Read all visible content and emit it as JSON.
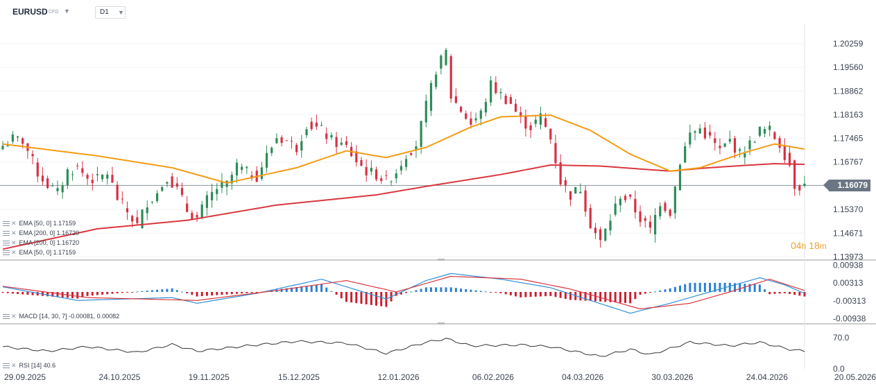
{
  "header": {
    "symbol": "EURUSD",
    "symbol_tag": "CFD",
    "timeframe": "D1"
  },
  "countdown": {
    "hours": "04",
    "h": "h",
    "minutes": "18",
    "m": "m"
  },
  "indicators": {
    "main": [
      "EMA [50, 0] 1.17159",
      "EMA [200, 0] 1.16720",
      "EMA [200, 0] 1.16720",
      "EMA [50, 0] 1.17159"
    ],
    "macd": "MACD [14, 30, 7] -0.00081, 0.00082",
    "rsi": "RSI [14] 40.6"
  },
  "colors": {
    "up": "#2e8b57",
    "down": "#d63042",
    "ema50": "#f39c12",
    "ema200": "#d9363e",
    "macd_line": "#2f8fd8",
    "signal_line": "#d9363e",
    "hist_pos": "#2a7fd4",
    "hist_neg": "#cc1f2f",
    "rsi_line": "#333333"
  },
  "chart_data": {
    "type": "candlestick",
    "price_axis": {
      "ylim": [
        1.139,
        1.2085
      ],
      "ticks": [
        "1.20259",
        "1.19560",
        "1.18862",
        "1.18163",
        "1.17465",
        "1.16767",
        "1.15370",
        "1.14671",
        "1.13973"
      ]
    },
    "last_price": "1.16079",
    "x_labels": [
      "29.09.2025",
      "24.10.2025",
      "19.11.2025",
      "15.12.2025",
      "12.01.2026",
      "06.02.2026",
      "04.03.2026",
      "30.03.2026",
      "24.04.2026",
      "20.05.2026"
    ],
    "ohlc_anchors": [
      [
        "2025-09-29",
        1.1725
      ],
      [
        "2025-10-01",
        1.1745
      ],
      [
        "2025-10-03",
        1.174
      ],
      [
        "2025-10-06",
        1.171
      ],
      [
        "2025-10-08",
        1.1645
      ],
      [
        "2025-10-10",
        1.161
      ],
      [
        "2025-10-14",
        1.1585
      ],
      [
        "2025-10-16",
        1.165
      ],
      [
        "2025-10-20",
        1.166
      ],
      [
        "2025-10-22",
        1.163
      ],
      [
        "2025-10-24",
        1.1625
      ],
      [
        "2025-10-28",
        1.1645
      ],
      [
        "2025-10-30",
        1.157
      ],
      [
        "2025-11-03",
        1.153
      ],
      [
        "2025-11-05",
        1.149
      ],
      [
        "2025-11-07",
        1.156
      ],
      [
        "2025-11-11",
        1.1585
      ],
      [
        "2025-11-13",
        1.1635
      ],
      [
        "2025-11-17",
        1.1595
      ],
      [
        "2025-11-19",
        1.1535
      ],
      [
        "2025-11-21",
        1.151
      ],
      [
        "2025-11-25",
        1.1565
      ],
      [
        "2025-11-27",
        1.16
      ],
      [
        "2025-12-01",
        1.161
      ],
      [
        "2025-12-03",
        1.1665
      ],
      [
        "2025-12-05",
        1.1645
      ],
      [
        "2025-12-09",
        1.1635
      ],
      [
        "2025-12-11",
        1.1695
      ],
      [
        "2025-12-15",
        1.175
      ],
      [
        "2025-12-17",
        1.174
      ],
      [
        "2025-12-19",
        1.172
      ],
      [
        "2025-12-23",
        1.179
      ],
      [
        "2025-12-26",
        1.177
      ],
      [
        "2025-12-30",
        1.174
      ],
      [
        "2026-01-02",
        1.172
      ],
      [
        "2026-01-06",
        1.168
      ],
      [
        "2026-01-08",
        1.165
      ],
      [
        "2026-01-12",
        1.164
      ],
      [
        "2026-01-14",
        1.162
      ],
      [
        "2026-01-16",
        1.165
      ],
      [
        "2026-01-20",
        1.17
      ],
      [
        "2026-01-22",
        1.173
      ],
      [
        "2026-01-26",
        1.184
      ],
      [
        "2026-01-28",
        1.195
      ],
      [
        "2026-01-30",
        1.2
      ],
      [
        "2026-02-02",
        1.187
      ],
      [
        "2026-02-04",
        1.183
      ],
      [
        "2026-02-06",
        1.179
      ],
      [
        "2026-02-10",
        1.182
      ],
      [
        "2026-02-12",
        1.1905
      ],
      [
        "2026-02-16",
        1.1875
      ],
      [
        "2026-02-18",
        1.185
      ],
      [
        "2026-02-20",
        1.18
      ],
      [
        "2026-02-24",
        1.178
      ],
      [
        "2026-02-26",
        1.181
      ],
      [
        "2026-03-02",
        1.1745
      ],
      [
        "2026-03-04",
        1.162
      ],
      [
        "2026-03-06",
        1.158
      ],
      [
        "2026-03-10",
        1.16
      ],
      [
        "2026-03-12",
        1.1495
      ],
      [
        "2026-03-16",
        1.144
      ],
      [
        "2026-03-18",
        1.151
      ],
      [
        "2026-03-20",
        1.158
      ],
      [
        "2026-03-24",
        1.156
      ],
      [
        "2026-03-26",
        1.151
      ],
      [
        "2026-03-30",
        1.1475
      ],
      [
        "2026-04-01",
        1.156
      ],
      [
        "2026-04-03",
        1.153
      ],
      [
        "2026-04-07",
        1.168
      ],
      [
        "2026-04-09",
        1.176
      ],
      [
        "2026-04-13",
        1.1775
      ],
      [
        "2026-04-15",
        1.1745
      ],
      [
        "2026-04-17",
        1.171
      ],
      [
        "2026-04-21",
        1.174
      ],
      [
        "2026-04-23",
        1.17
      ],
      [
        "2026-04-27",
        1.173
      ],
      [
        "2026-04-29",
        1.177
      ],
      [
        "2026-05-01",
        1.177
      ],
      [
        "2026-05-05",
        1.173
      ],
      [
        "2026-05-07",
        1.167
      ],
      [
        "2026-05-09",
        1.161
      ],
      [
        "2026-05-11",
        1.1608
      ]
    ],
    "ema50_anchors": [
      [
        "2025-09-29",
        1.173
      ],
      [
        "2025-10-24",
        1.1695
      ],
      [
        "2025-11-14",
        1.166
      ],
      [
        "2025-12-01",
        1.1615
      ],
      [
        "2025-12-20",
        1.166
      ],
      [
        "2026-01-02",
        1.171
      ],
      [
        "2026-01-14",
        1.169
      ],
      [
        "2026-01-26",
        1.172
      ],
      [
        "2026-02-06",
        1.178
      ],
      [
        "2026-02-16",
        1.181
      ],
      [
        "2026-03-02",
        1.1815
      ],
      [
        "2026-03-12",
        1.177
      ],
      [
        "2026-03-24",
        1.17
      ],
      [
        "2026-04-03",
        1.165
      ],
      [
        "2026-04-13",
        1.166
      ],
      [
        "2026-04-24",
        1.1705
      ],
      [
        "2026-05-04",
        1.173
      ],
      [
        "2026-05-12",
        1.1715
      ]
    ],
    "ema200_anchors": [
      [
        "2025-09-29",
        1.142
      ],
      [
        "2025-10-24",
        1.148
      ],
      [
        "2025-11-19",
        1.1505
      ],
      [
        "2025-12-15",
        1.155
      ],
      [
        "2026-01-12",
        1.158
      ],
      [
        "2026-01-26",
        1.1605
      ],
      [
        "2026-02-16",
        1.164
      ],
      [
        "2026-03-02",
        1.1668
      ],
      [
        "2026-03-16",
        1.1665
      ],
      [
        "2026-04-03",
        1.165
      ],
      [
        "2026-04-13",
        1.1658
      ],
      [
        "2026-04-24",
        1.1667
      ],
      [
        "2026-05-04",
        1.1672
      ],
      [
        "2026-05-12",
        1.167
      ]
    ],
    "macd": {
      "ticks": [
        "0.00938",
        "0.00313",
        "-0.00313",
        "-0.00938"
      ],
      "ylim": [
        -0.011,
        0.011
      ],
      "macd_anchors": [
        [
          "2025-09-29",
          0.0018
        ],
        [
          "2025-10-20",
          -0.003
        ],
        [
          "2025-11-14",
          -0.002
        ],
        [
          "2025-11-21",
          -0.004
        ],
        [
          "2025-12-09",
          -0.0005
        ],
        [
          "2025-12-26",
          0.0045
        ],
        [
          "2026-01-14",
          -0.0025
        ],
        [
          "2026-01-26",
          0.004
        ],
        [
          "2026-02-02",
          0.0065
        ],
        [
          "2026-02-16",
          0.0045
        ],
        [
          "2026-03-02",
          0.0015
        ],
        [
          "2026-03-24",
          -0.0075
        ],
        [
          "2026-04-03",
          -0.004
        ],
        [
          "2026-04-17",
          0.001
        ],
        [
          "2026-04-29",
          0.005
        ],
        [
          "2026-05-06",
          0.0025
        ],
        [
          "2026-05-12",
          -0.0005
        ]
      ],
      "signal_anchors": [
        [
          "2025-09-29",
          0.002
        ],
        [
          "2025-10-22",
          -0.002
        ],
        [
          "2025-11-21",
          -0.003
        ],
        [
          "2025-12-15",
          0.0005
        ],
        [
          "2026-01-02",
          0.004
        ],
        [
          "2026-01-16",
          0.0
        ],
        [
          "2026-02-02",
          0.0055
        ],
        [
          "2026-02-20",
          0.0045
        ],
        [
          "2026-03-06",
          0.001
        ],
        [
          "2026-03-26",
          -0.006
        ],
        [
          "2026-04-09",
          -0.004
        ],
        [
          "2026-04-21",
          0.0
        ],
        [
          "2026-05-01",
          0.0045
        ],
        [
          "2026-05-12",
          0.0005
        ]
      ]
    },
    "rsi": {
      "ticks": [
        "70.0",
        "0.0"
      ],
      "ylim": [
        0,
        100
      ],
      "anchors": [
        [
          "2025-09-29",
          50
        ],
        [
          "2025-10-10",
          40
        ],
        [
          "2025-10-22",
          50
        ],
        [
          "2025-11-05",
          37
        ],
        [
          "2025-11-14",
          55
        ],
        [
          "2025-11-21",
          40
        ],
        [
          "2025-12-05",
          52
        ],
        [
          "2025-12-19",
          62
        ],
        [
          "2026-01-02",
          58
        ],
        [
          "2026-01-14",
          35
        ],
        [
          "2026-01-26",
          60
        ],
        [
          "2026-01-30",
          68
        ],
        [
          "2026-02-06",
          52
        ],
        [
          "2026-02-20",
          54
        ],
        [
          "2026-03-02",
          50
        ],
        [
          "2026-03-16",
          28
        ],
        [
          "2026-03-24",
          44
        ],
        [
          "2026-03-30",
          32
        ],
        [
          "2026-04-09",
          60
        ],
        [
          "2026-04-21",
          52
        ],
        [
          "2026-04-29",
          60
        ],
        [
          "2026-05-07",
          44
        ],
        [
          "2026-05-12",
          40
        ]
      ]
    }
  }
}
